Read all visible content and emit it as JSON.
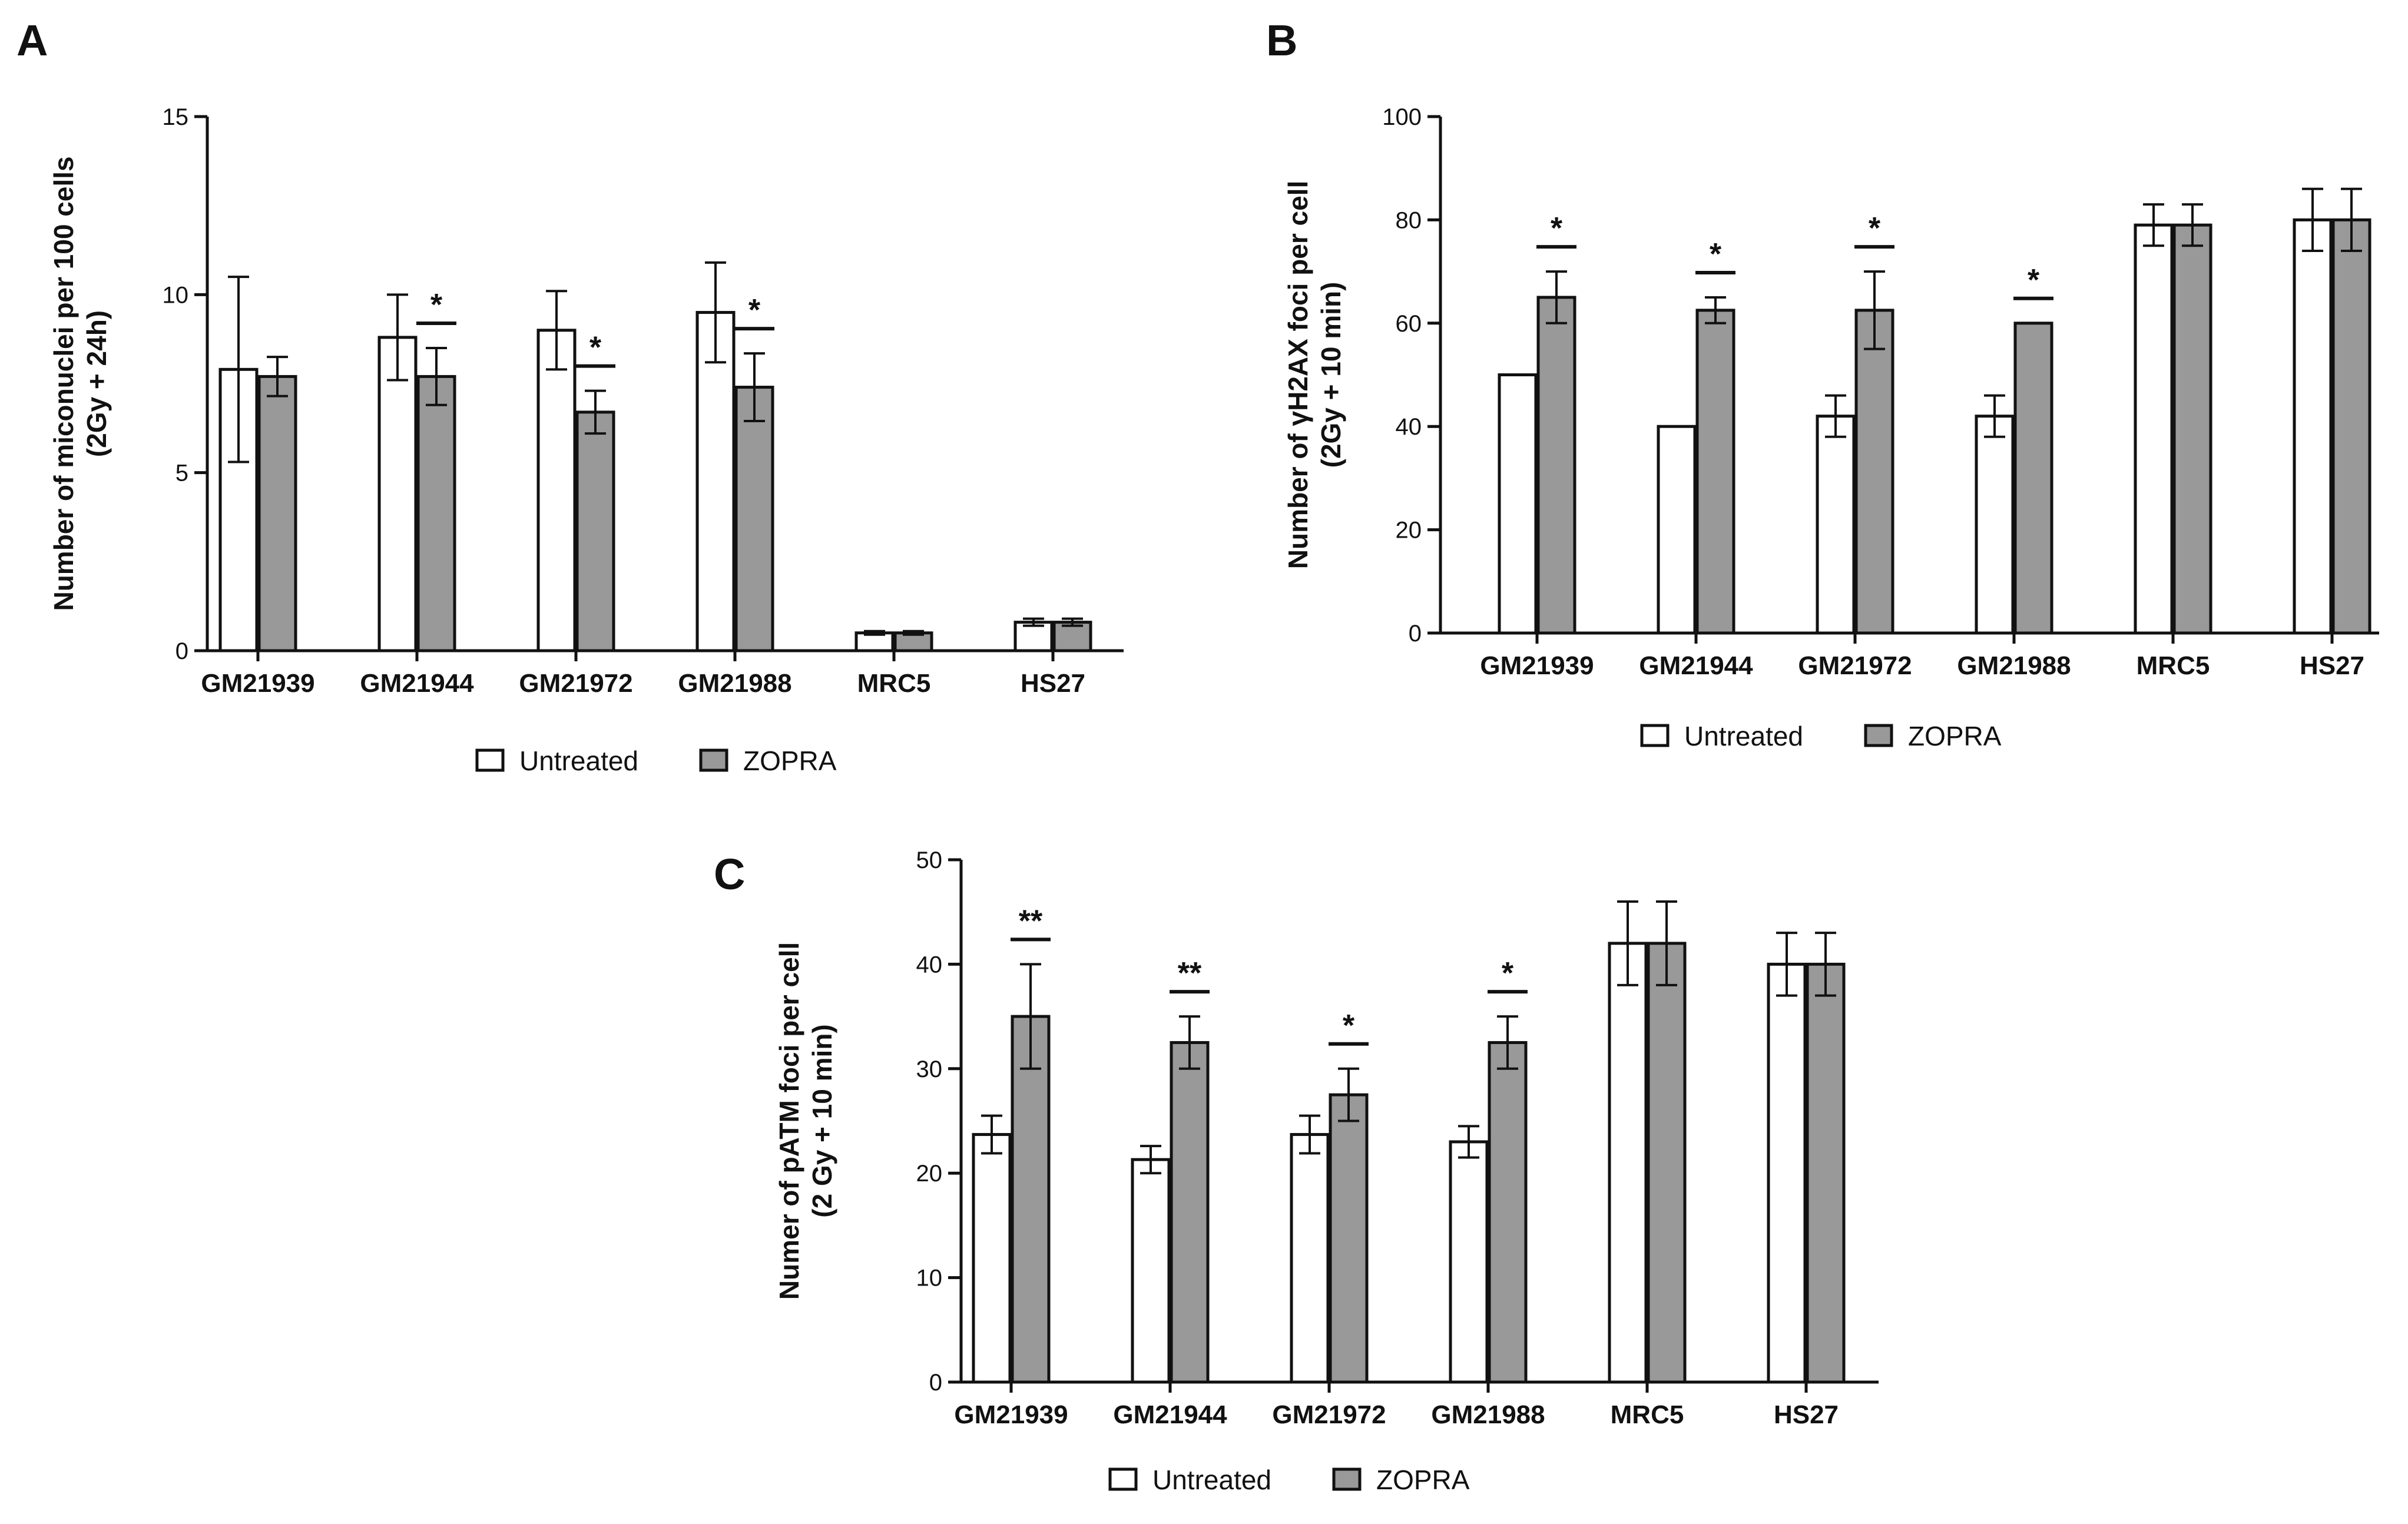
{
  "chart_data": [
    {
      "panel": "A",
      "type": "bar",
      "ylabel": [
        "Number of miconuclei per 100 cells",
        "(2Gy + 24h)"
      ],
      "ylim": [
        0,
        15
      ],
      "yticks": [
        "0",
        "5",
        "10",
        "15"
      ],
      "categories": [
        "GM21939",
        "GM21944",
        "GM21972",
        "GM21988",
        "MRC5",
        "HS27"
      ],
      "series": [
        {
          "name": "Untreated",
          "color": "#ffffff",
          "values": [
            7.9,
            8.8,
            9.0,
            9.5,
            0.5,
            0.8
          ],
          "errors": [
            2.6,
            1.2,
            1.1,
            1.4,
            0.05,
            0.1
          ]
        },
        {
          "name": "ZOPRA",
          "color": "#999999",
          "values": [
            7.7,
            7.7,
            6.7,
            7.4,
            0.5,
            0.8
          ],
          "errors": [
            0.55,
            0.8,
            0.6,
            0.95,
            0.05,
            0.1
          ]
        }
      ],
      "significance": [
        "",
        "*",
        "*",
        "*",
        "",
        ""
      ],
      "legend": [
        "Untreated",
        "ZOPRA"
      ]
    },
    {
      "panel": "B",
      "type": "bar",
      "ylabel": [
        "Number of γH2AX foci per cell",
        "(2Gy + 10 min)"
      ],
      "ylim": [
        0,
        100
      ],
      "yticks": [
        "0",
        "20",
        "40",
        "60",
        "80",
        "100"
      ],
      "categories": [
        "GM21939",
        "GM21944",
        "GM21972",
        "GM21988",
        "MRC5",
        "HS27"
      ],
      "series": [
        {
          "name": "Untreated",
          "color": "#ffffff",
          "values": [
            50,
            40,
            42,
            42,
            79,
            80
          ],
          "errors": [
            0,
            0,
            4,
            4,
            4,
            6
          ]
        },
        {
          "name": "ZOPRA",
          "color": "#999999",
          "values": [
            65,
            62.5,
            62.5,
            60,
            79,
            80
          ],
          "errors": [
            5,
            2.5,
            7.5,
            0,
            4,
            6
          ]
        }
      ],
      "significance": [
        "*",
        "*",
        "*",
        "*",
        "",
        ""
      ],
      "legend": [
        "Untreated",
        "ZOPRA"
      ]
    },
    {
      "panel": "C",
      "type": "bar",
      "ylabel": [
        "Numer of pATM foci per cell",
        "(2 Gy + 10 min)"
      ],
      "ylim": [
        0,
        50
      ],
      "yticks": [
        "0",
        "10",
        "20",
        "30",
        "40",
        "50"
      ],
      "categories": [
        "GM21939",
        "GM21944",
        "GM21972",
        "GM21988",
        "MRC5",
        "HS27"
      ],
      "series": [
        {
          "name": "Untreated",
          "color": "#ffffff",
          "values": [
            23.7,
            21.3,
            23.7,
            23.0,
            42,
            40
          ],
          "errors": [
            1.8,
            1.3,
            1.8,
            1.5,
            4,
            3
          ]
        },
        {
          "name": "ZOPRA",
          "color": "#999999",
          "values": [
            35,
            32.5,
            27.5,
            32.5,
            42,
            40
          ],
          "errors": [
            5,
            2.5,
            2.5,
            2.5,
            4,
            3
          ]
        }
      ],
      "significance": [
        "**",
        "**",
        "*",
        "*",
        "",
        ""
      ],
      "legend": [
        "Untreated",
        "ZOPRA"
      ]
    }
  ]
}
